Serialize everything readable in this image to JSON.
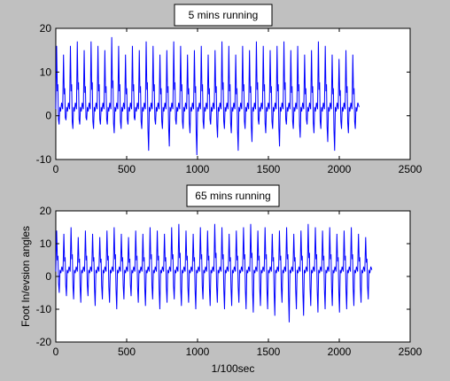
{
  "chart_data": [
    {
      "type": "line",
      "title": "5 mins running",
      "xlabel": "",
      "ylabel": "",
      "xlim": [
        0,
        2500
      ],
      "ylim": [
        -10,
        20
      ],
      "xticks": [
        0,
        500,
        1000,
        1500,
        2000,
        2500
      ],
      "yticks": [
        -10,
        0,
        10,
        20
      ],
      "grid": false,
      "series_color": "#0000ff",
      "x_end": 2140,
      "cycle_period": 48.6,
      "peaks": [
        16,
        14,
        16,
        17,
        15,
        17,
        16,
        15,
        18,
        16,
        14,
        16,
        15,
        17,
        16,
        14,
        15,
        17,
        16,
        14,
        15,
        16,
        14,
        15,
        17,
        16,
        14,
        16,
        15,
        17,
        16,
        15,
        16,
        17,
        15,
        16,
        14,
        15,
        17,
        16,
        14,
        13,
        15,
        14
      ],
      "troughs": [
        -2,
        -1,
        -3,
        -2,
        -1,
        -3,
        -2,
        -2,
        -4,
        -3,
        -2,
        -1,
        -3,
        -8,
        -2,
        -3,
        -7,
        -2,
        -3,
        -4,
        -9,
        -3,
        -2,
        -5,
        -3,
        -4,
        -8,
        -3,
        -6,
        -2,
        -4,
        -3,
        -7,
        -2,
        -3,
        -5,
        -2,
        -4,
        -3,
        -6,
        -8,
        -3,
        -4,
        -3
      ]
    },
    {
      "type": "line",
      "title": "65 mins running",
      "xlabel": "1/100sec",
      "ylabel": "Foot In/evsion angles",
      "xlim": [
        0,
        2500
      ],
      "ylim": [
        -20,
        20
      ],
      "xticks": [
        0,
        500,
        1000,
        1500,
        2000,
        2500
      ],
      "yticks": [
        -20,
        -10,
        0,
        10,
        20
      ],
      "grid": false,
      "series_color": "#0000ff",
      "x_end": 2230,
      "cycle_period": 50.7,
      "peaks": [
        14,
        13,
        15,
        12,
        14,
        13,
        12,
        14,
        15,
        13,
        12,
        14,
        13,
        15,
        14,
        13,
        15,
        16,
        14,
        13,
        15,
        14,
        16,
        15,
        13,
        14,
        15,
        16,
        14,
        15,
        13,
        14,
        15,
        13,
        14,
        16,
        15,
        14,
        15,
        13,
        14,
        15,
        13,
        12
      ],
      "troughs": [
        -5,
        -6,
        -7,
        -8,
        -6,
        -9,
        -7,
        -8,
        -10,
        -7,
        -6,
        -8,
        -9,
        -7,
        -10,
        -8,
        -7,
        -9,
        -8,
        -10,
        -7,
        -9,
        -8,
        -10,
        -9,
        -8,
        -10,
        -11,
        -9,
        -10,
        -12,
        -8,
        -14,
        -10,
        -12,
        -9,
        -11,
        -10,
        -9,
        -11,
        -10,
        -9,
        -8,
        -7
      ]
    }
  ]
}
